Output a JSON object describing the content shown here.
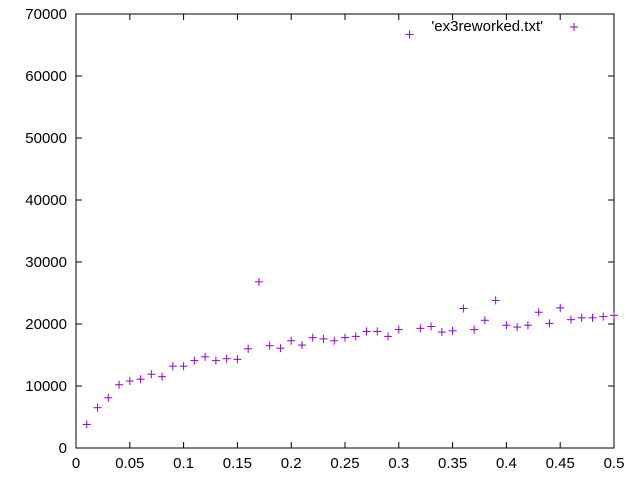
{
  "chart_data": {
    "type": "scatter",
    "title": "",
    "xlabel": "",
    "ylabel": "",
    "xlim": [
      0,
      0.5
    ],
    "ylim": [
      0,
      70000
    ],
    "grid": false,
    "legend_position": "top-right",
    "x_ticks": [
      "0",
      "0.05",
      "0.1",
      "0.15",
      "0.2",
      "0.25",
      "0.3",
      "0.35",
      "0.4",
      "0.45",
      "0.5"
    ],
    "y_ticks": [
      "0",
      "10000",
      "20000",
      "30000",
      "40000",
      "50000",
      "60000",
      "70000"
    ],
    "series": [
      {
        "name": "'ex3reworked.txt'",
        "color": "#9400d3",
        "marker": "plus",
        "points": [
          [
            0.01,
            3800
          ],
          [
            0.02,
            6500
          ],
          [
            0.03,
            8100
          ],
          [
            0.04,
            10200
          ],
          [
            0.05,
            10800
          ],
          [
            0.06,
            11100
          ],
          [
            0.07,
            11900
          ],
          [
            0.08,
            11500
          ],
          [
            0.09,
            13200
          ],
          [
            0.1,
            13200
          ],
          [
            0.11,
            14100
          ],
          [
            0.12,
            14700
          ],
          [
            0.13,
            14100
          ],
          [
            0.14,
            14400
          ],
          [
            0.15,
            14300
          ],
          [
            0.16,
            16000
          ],
          [
            0.17,
            26800
          ],
          [
            0.18,
            16500
          ],
          [
            0.19,
            16100
          ],
          [
            0.2,
            17300
          ],
          [
            0.21,
            16600
          ],
          [
            0.22,
            17800
          ],
          [
            0.23,
            17600
          ],
          [
            0.24,
            17300
          ],
          [
            0.25,
            17800
          ],
          [
            0.26,
            18000
          ],
          [
            0.27,
            18800
          ],
          [
            0.28,
            18800
          ],
          [
            0.29,
            18000
          ],
          [
            0.3,
            19100
          ],
          [
            0.31,
            66700
          ],
          [
            0.32,
            19300
          ],
          [
            0.33,
            19600
          ],
          [
            0.34,
            18700
          ],
          [
            0.35,
            18900
          ],
          [
            0.36,
            22500
          ],
          [
            0.37,
            19100
          ],
          [
            0.38,
            20600
          ],
          [
            0.39,
            23800
          ],
          [
            0.4,
            19800
          ],
          [
            0.41,
            19500
          ],
          [
            0.42,
            19800
          ],
          [
            0.43,
            21900
          ],
          [
            0.44,
            20100
          ],
          [
            0.45,
            22600
          ],
          [
            0.46,
            20700
          ],
          [
            0.47,
            21000
          ],
          [
            0.48,
            21000
          ],
          [
            0.49,
            21200
          ],
          [
            0.5,
            21400
          ]
        ]
      }
    ]
  }
}
